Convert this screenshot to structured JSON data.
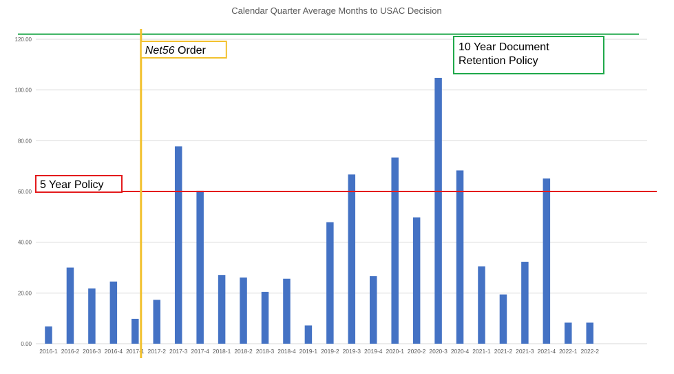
{
  "chart_data": {
    "type": "bar",
    "title": "Calendar Quarter Average Months to USAC Decision",
    "xlabel": "",
    "ylabel": "",
    "ylim": [
      0,
      120
    ],
    "yticks": [
      "0.00",
      "20.00",
      "40.00",
      "60.00",
      "80.00",
      "100.00",
      "120.00"
    ],
    "grid": true,
    "categories": [
      "2016-1",
      "2016-2",
      "2016-3",
      "2016-4",
      "2017-1",
      "2017-2",
      "2017-3",
      "2017-4",
      "2018-1",
      "2018-2",
      "2018-3",
      "2018-4",
      "2019-1",
      "2019-2",
      "2019-3",
      "2019-4",
      "2020-1",
      "2020-2",
      "2020-3",
      "2020-4",
      "2021-1",
      "2021-2",
      "2021-3",
      "2021-4",
      "2022-1",
      "2022-2"
    ],
    "values": [
      6.8,
      30.0,
      21.8,
      24.5,
      9.8,
      17.3,
      77.8,
      60.3,
      27.1,
      26.1,
      20.4,
      25.6,
      7.2,
      47.9,
      66.7,
      26.6,
      73.4,
      49.8,
      104.8,
      68.3,
      30.5,
      19.4,
      32.3,
      65.1,
      8.3,
      8.3
    ],
    "annotations": {
      "net56": {
        "text_italic": "Net56",
        "text_rest": " Order",
        "at_category": "2017-1",
        "color": "#f2c12e"
      },
      "five_year": {
        "text": "5 Year Policy",
        "y": 60,
        "color": "#e31a1c"
      },
      "ten_year": {
        "lines": [
          "10 Year Document",
          "Retention Policy"
        ],
        "y": 122,
        "color": "#1fa84a"
      }
    },
    "colors": {
      "bar": "#4472c4",
      "grid": "#d9d9d9",
      "text": "#595959"
    }
  }
}
